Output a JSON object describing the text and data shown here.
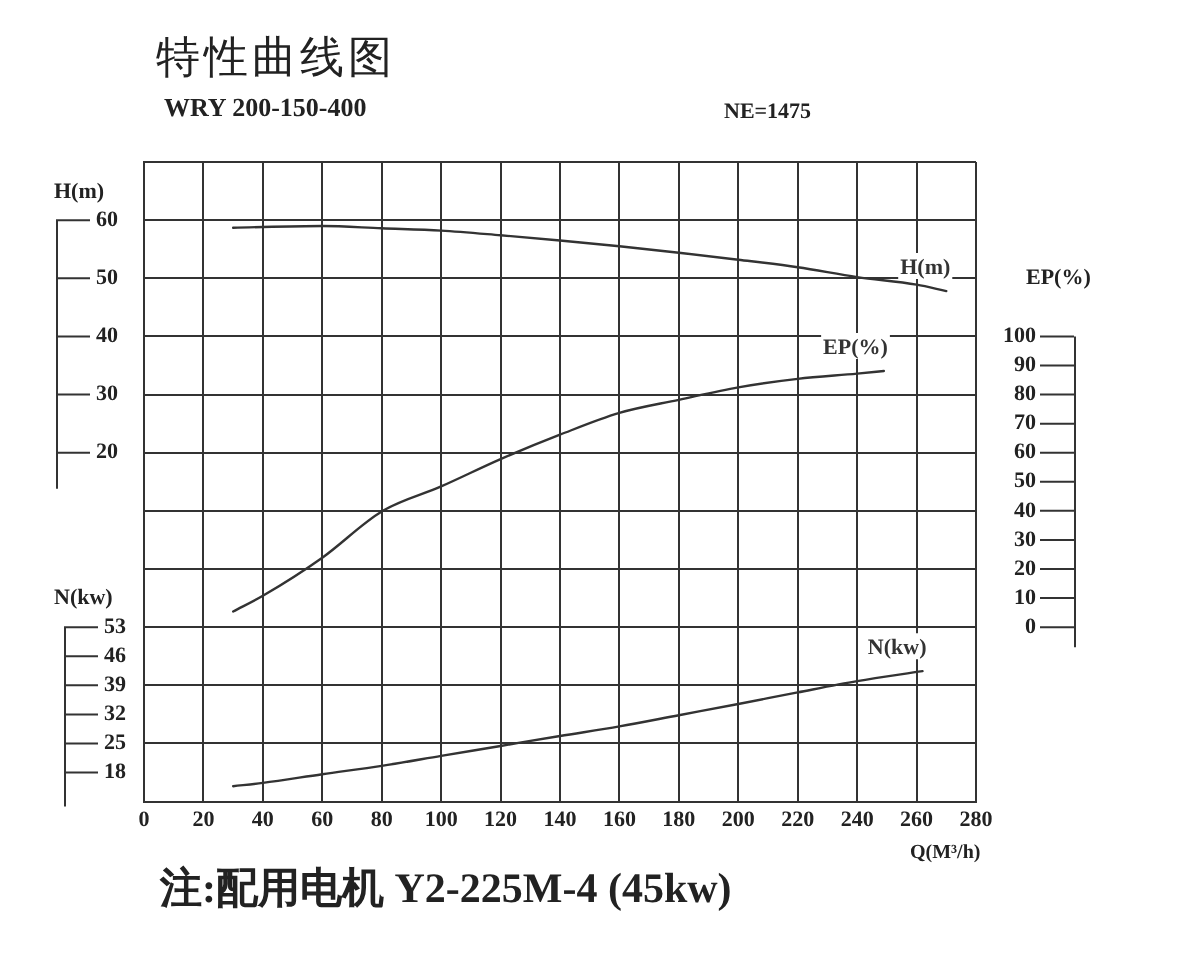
{
  "chart_data": {
    "type": "line",
    "title": "特性曲线图",
    "subtitle": "WRY 200-150-400",
    "xlabel": "Q(M³/h)",
    "ylabel": "H(m)",
    "y2label": "EP(%)",
    "y3label": "N(kw)",
    "annotations": [
      "NE=1475",
      "注:配用电机 Y2-225M-4  (45kw)"
    ],
    "series": [
      {
        "name": "H(m)",
        "color": "#333333",
        "axis": "y",
        "x": [
          30,
          60,
          80,
          100,
          120,
          140,
          160,
          180,
          200,
          220,
          240,
          260,
          270
        ],
        "values": [
          58.7,
          59,
          58.6,
          58.2,
          57.4,
          56.5,
          55.5,
          54.4,
          53.2,
          51.9,
          50.2,
          48.9,
          47.8
        ]
      },
      {
        "name": "EP(%)",
        "color": "#333333",
        "axis": "y2",
        "x": [
          30,
          40,
          60,
          80,
          100,
          120,
          140,
          160,
          180,
          200,
          220,
          240,
          249
        ],
        "values": [
          5.4,
          10.8,
          23.9,
          39.8,
          48.4,
          57.8,
          66.2,
          73.7,
          78.2,
          82.5,
          85.4,
          87.2,
          88.1
        ]
      },
      {
        "name": "N(kw)",
        "color": "#333333",
        "axis": "y3",
        "x": [
          30,
          40,
          60,
          80,
          100,
          120,
          140,
          160,
          180,
          200,
          220,
          240,
          262
        ],
        "values": [
          14.7,
          15.5,
          17.6,
          19.6,
          22,
          24.4,
          26.8,
          29.1,
          31.8,
          34.5,
          37.3,
          40,
          42.4
        ]
      }
    ],
    "xlim": [
      0,
      280
    ],
    "xticks": [
      0,
      20,
      40,
      60,
      80,
      100,
      120,
      140,
      160,
      180,
      200,
      220,
      240,
      260,
      280
    ],
    "ylim": [
      -40,
      70
    ],
    "yticks": [
      {
        "value": -40,
        "label": null
      },
      {
        "value": -30,
        "label": null
      },
      {
        "value": -20,
        "label": null
      },
      {
        "value": -10,
        "label": null
      },
      {
        "value": 0,
        "label": null
      },
      {
        "value": 10,
        "label": null
      },
      20,
      30,
      40,
      50,
      60,
      {
        "value": 70,
        "label": null
      }
    ],
    "y2lim": [
      -60,
      160
    ],
    "y2ticks": [
      0,
      10,
      20,
      30,
      40,
      50,
      60,
      70,
      80,
      90,
      100
    ],
    "y3lim": [
      11,
      165
    ],
    "y3ticks": [
      18,
      25,
      32,
      39,
      46,
      53
    ],
    "grid": true,
    "marker": "none",
    "line_style": "solid"
  }
}
